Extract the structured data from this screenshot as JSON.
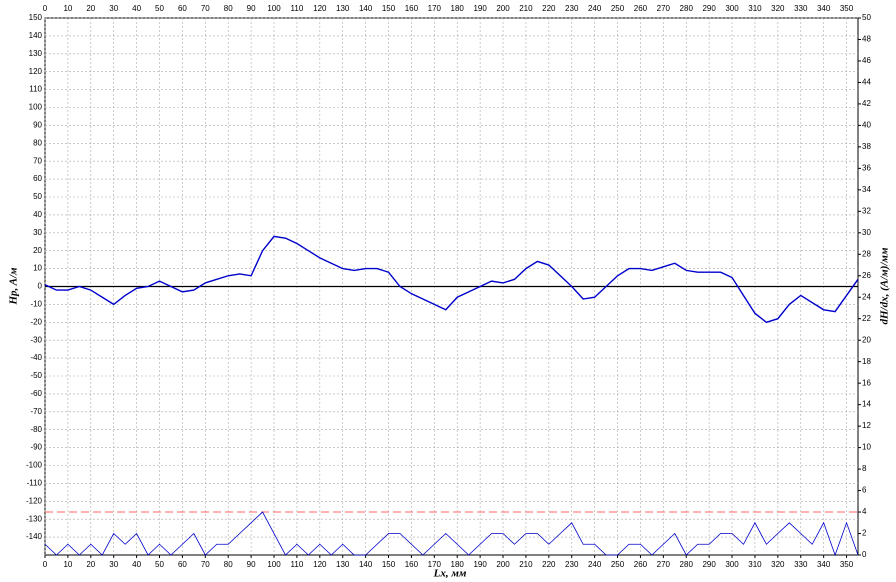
{
  "chart_data": {
    "type": "line",
    "xlabel": "Lx, мм",
    "ylabel": "Hp, A/м",
    "y2label": "dH/dx, (A/м)/мм",
    "x": [
      0,
      5,
      10,
      15,
      20,
      25,
      30,
      35,
      40,
      45,
      50,
      55,
      60,
      65,
      70,
      75,
      80,
      85,
      90,
      95,
      100,
      105,
      110,
      115,
      120,
      125,
      130,
      135,
      140,
      145,
      150,
      155,
      160,
      165,
      170,
      175,
      180,
      185,
      190,
      195,
      200,
      205,
      210,
      215,
      220,
      225,
      230,
      235,
      240,
      245,
      250,
      255,
      260,
      265,
      270,
      275,
      280,
      285,
      290,
      295,
      300,
      305,
      310,
      315,
      320,
      325,
      330,
      335,
      340,
      345,
      350,
      355
    ],
    "series": [
      {
        "name": "Hp",
        "color": "#0000cc",
        "values": [
          1,
          -2,
          -2,
          0,
          -2,
          -6,
          -10,
          -5,
          -1,
          0,
          3,
          0,
          -3,
          -2,
          2,
          4,
          6,
          7,
          6,
          20,
          28,
          27,
          24,
          20,
          16,
          13,
          10,
          9,
          10,
          10,
          8,
          0,
          -4,
          -7,
          -10,
          -13,
          -6,
          -3,
          0,
          3,
          2,
          4,
          10,
          14,
          12,
          6,
          0,
          -7,
          -6,
          0,
          6,
          10,
          10,
          9,
          11,
          13,
          9,
          8,
          8,
          8,
          5,
          -5,
          -15,
          -20,
          -18,
          -10,
          -5,
          -9,
          -13,
          -14,
          -5,
          4
        ]
      },
      {
        "name": "dH/dx",
        "color": "#0000cc",
        "axis": "y2",
        "values": [
          1,
          0,
          1,
          0,
          1,
          0,
          2,
          1,
          2,
          0,
          1,
          0,
          1,
          2,
          0,
          1,
          1,
          2,
          3,
          4,
          2,
          0,
          1,
          0,
          1,
          0,
          1,
          0,
          0,
          1,
          2,
          2,
          1,
          0,
          1,
          2,
          1,
          0,
          1,
          2,
          2,
          1,
          2,
          2,
          1,
          2,
          3,
          1,
          1,
          0,
          0,
          1,
          1,
          0,
          1,
          2,
          0,
          1,
          1,
          2,
          2,
          1,
          3,
          1,
          2,
          3,
          2,
          1,
          3,
          0,
          3,
          0
        ]
      }
    ],
    "threshold": {
      "value": 4,
      "axis": "y2",
      "color": "#ff6666"
    },
    "zero_line": {
      "value": 0,
      "color": "#000000"
    },
    "xlim": [
      0,
      355
    ],
    "xticks": [
      0,
      10,
      20,
      30,
      40,
      50,
      60,
      70,
      80,
      90,
      100,
      110,
      120,
      130,
      140,
      150,
      160,
      170,
      180,
      190,
      200,
      210,
      220,
      230,
      240,
      250,
      260,
      270,
      280,
      290,
      300,
      310,
      320,
      330,
      340,
      350
    ],
    "ylim": [
      -150,
      150
    ],
    "yticks": [
      -140,
      -130,
      -120,
      -110,
      -100,
      -90,
      -80,
      -70,
      -60,
      -50,
      -40,
      -30,
      -20,
      -10,
      0,
      10,
      20,
      30,
      40,
      50,
      60,
      70,
      80,
      90,
      100,
      110,
      120,
      130,
      140,
      150
    ],
    "y2lim": [
      0,
      50
    ],
    "y2ticks": [
      0,
      2,
      4,
      6,
      8,
      10,
      12,
      14,
      16,
      18,
      20,
      22,
      24,
      26,
      28,
      30,
      32,
      34,
      36,
      38,
      40,
      42,
      44,
      46,
      48,
      50
    ],
    "grid": true
  }
}
